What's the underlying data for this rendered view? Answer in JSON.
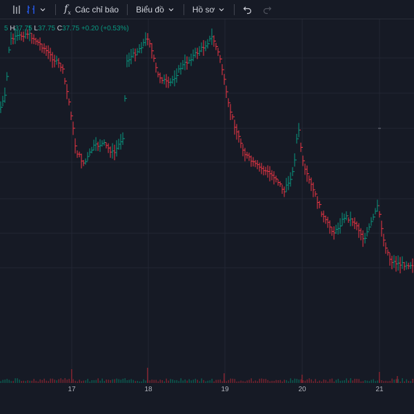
{
  "toolbar": {
    "indicators_label": "Các chỉ báo",
    "chart_label": "Biểu đồ",
    "profile_label": "Hồ sơ",
    "icons": [
      "bar-style-icon",
      "candle-style-icon",
      "function-icon",
      "chevron-down-icon",
      "undo-icon",
      "redo-icon"
    ]
  },
  "legend": {
    "open_value": "5",
    "high_key": "H",
    "high_value": "37.75",
    "low_key": "L",
    "low_value": "37.75",
    "close_key": "C",
    "close_value": "37.75",
    "change": "+0.20 (+0.53%)"
  },
  "colors": {
    "background": "#161a25",
    "up": "#089981",
    "down": "#f23645",
    "grid": "#222633",
    "text": "#d1d4dc"
  },
  "chart_data": {
    "type": "bar",
    "x_ticks": [
      "17",
      "18",
      "19",
      "20",
      "21"
    ],
    "price_path": [
      [
        0,
        130
      ],
      [
        8,
        110
      ],
      [
        14,
        30
      ],
      [
        40,
        20
      ],
      [
        62,
        40
      ],
      [
        75,
        55
      ],
      [
        90,
        70
      ],
      [
        102,
        130
      ],
      [
        110,
        190
      ],
      [
        122,
        210
      ],
      [
        135,
        185
      ],
      [
        150,
        180
      ],
      [
        165,
        195
      ],
      [
        178,
        170
      ],
      [
        184,
        60
      ],
      [
        200,
        45
      ],
      [
        215,
        25
      ],
      [
        228,
        80
      ],
      [
        245,
        95
      ],
      [
        262,
        70
      ],
      [
        278,
        55
      ],
      [
        295,
        40
      ],
      [
        308,
        25
      ],
      [
        320,
        60
      ],
      [
        330,
        120
      ],
      [
        342,
        160
      ],
      [
        355,
        195
      ],
      [
        368,
        210
      ],
      [
        385,
        220
      ],
      [
        400,
        230
      ],
      [
        412,
        250
      ],
      [
        425,
        220
      ],
      [
        432,
        155
      ],
      [
        440,
        215
      ],
      [
        455,
        250
      ],
      [
        470,
        290
      ],
      [
        485,
        310
      ],
      [
        500,
        285
      ],
      [
        515,
        295
      ],
      [
        528,
        320
      ],
      [
        540,
        290
      ],
      [
        548,
        270
      ],
      [
        556,
        320
      ],
      [
        566,
        350
      ],
      [
        580,
        355
      ],
      [
        600,
        355
      ]
    ],
    "volume_spikes": [
      [
        103,
        20
      ],
      [
        213,
        22
      ],
      [
        324,
        14
      ],
      [
        437,
        12
      ],
      [
        549,
        16
      ],
      [
        575,
        10
      ]
    ]
  }
}
